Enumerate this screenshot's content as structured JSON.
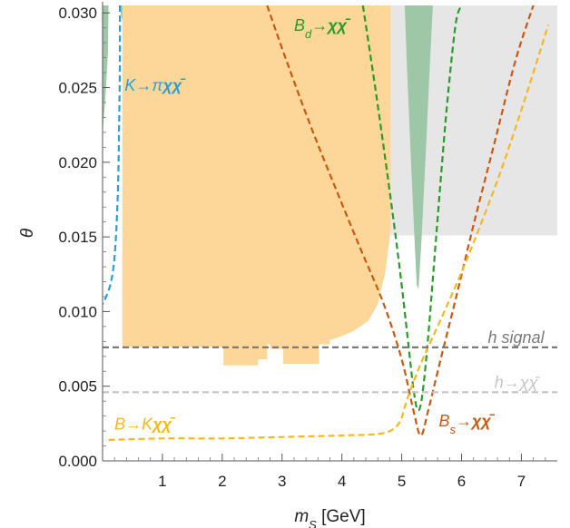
{
  "chart_data": {
    "type": "line",
    "xlabel": "m",
    "xlabel_sub": "S",
    "xlabel_unit": " [GeV]",
    "ylabel": "θ",
    "xlim": [
      0,
      7.6
    ],
    "ylim": [
      0,
      0.0305
    ],
    "x_ticks": [
      1,
      2,
      3,
      4,
      5,
      6,
      7
    ],
    "x_tick_labels": [
      "1",
      "2",
      "3",
      "4",
      "5",
      "6",
      "7"
    ],
    "y_ticks": [
      0.0,
      0.005,
      0.01,
      0.015,
      0.02,
      0.025,
      0.03
    ],
    "y_tick_labels": [
      "0.000",
      "0.005",
      "0.010",
      "0.015",
      "0.020",
      "0.025",
      "0.030"
    ],
    "grid": false,
    "colors": {
      "orange_region": "#fdd79a",
      "gray_region": "#e6e6e6",
      "green_region": "#9dc7a6",
      "cyan_line": "#2a9fd6",
      "green_line": "#2a9a2a",
      "red_line": "#c65a13",
      "yellow_line": "#f5b820",
      "h_signal_line": "#7a7a7a",
      "h_invisible_line": "#c4c4c4"
    },
    "regions": [
      {
        "id": "orange-excluded",
        "color": "#fdd79a",
        "polygon": [
          [
            0.33,
            0.0305
          ],
          [
            4.82,
            0.0305
          ],
          [
            4.82,
            0.0155
          ],
          [
            4.72,
            0.0125
          ],
          [
            4.6,
            0.0105
          ],
          [
            4.45,
            0.0094
          ],
          [
            4.2,
            0.0087
          ],
          [
            3.9,
            0.0082
          ],
          [
            3.8,
            0.0081
          ],
          [
            3.8,
            0.0078
          ],
          [
            3.62,
            0.0078
          ],
          [
            3.62,
            0.0072
          ],
          [
            3.62,
            0.0073
          ],
          [
            3.62,
            0.0065
          ],
          [
            3.02,
            0.0065
          ],
          [
            3.02,
            0.0075
          ],
          [
            2.8,
            0.0075
          ],
          [
            2.8,
            0.0078
          ],
          [
            2.75,
            0.0078
          ],
          [
            2.75,
            0.0068
          ],
          [
            2.6,
            0.0068
          ],
          [
            2.6,
            0.0064
          ],
          [
            2.02,
            0.0064
          ],
          [
            2.02,
            0.0076
          ],
          [
            0.33,
            0.0076
          ]
        ]
      },
      {
        "id": "gray-excluded",
        "color": "#e6e6e6",
        "polygon": [
          [
            4.82,
            0.0305
          ],
          [
            7.6,
            0.0305
          ],
          [
            7.6,
            0.0151
          ],
          [
            4.82,
            0.0151
          ]
        ]
      },
      {
        "id": "green-left",
        "color": "#9dc7a6",
        "polygon": [
          [
            0,
            0.0305
          ],
          [
            0.1,
            0.0305
          ],
          [
            0.09,
            0.0273
          ],
          [
            0.05,
            0.0245
          ],
          [
            0,
            0.0219
          ]
        ]
      },
      {
        "id": "green-right",
        "color": "#9dc7a6",
        "polygon": [
          [
            5.05,
            0.0305
          ],
          [
            5.52,
            0.0305
          ],
          [
            5.47,
            0.0265
          ],
          [
            5.4,
            0.0205
          ],
          [
            5.33,
            0.0148
          ],
          [
            5.28,
            0.0115
          ],
          [
            5.25,
            0.0118
          ],
          [
            5.2,
            0.016
          ],
          [
            5.14,
            0.0215
          ],
          [
            5.09,
            0.0262
          ]
        ]
      },
      {
        "id": "green-cyan-wedge",
        "color": "#9dc7a6",
        "polygon": [
          [
            0.29,
            0.0305
          ],
          [
            0.33,
            0.0305
          ],
          [
            0.33,
            0.0295
          ],
          [
            0.3,
            0.03
          ]
        ]
      }
    ],
    "series": [
      {
        "id": "k-to-pi",
        "color": "#2a9fd6",
        "x": [
          0.29,
          0.29,
          0.285,
          0.275,
          0.26,
          0.23,
          0.19,
          0.13,
          0.06,
          0.0
        ],
        "y": [
          0.0305,
          0.028,
          0.025,
          0.022,
          0.0185,
          0.0155,
          0.0132,
          0.0118,
          0.011,
          0.0105
        ]
      },
      {
        "id": "bd-to-chichi",
        "color": "#2a9a2a",
        "x": [
          4.35,
          4.55,
          4.75,
          4.95,
          5.1,
          5.2,
          5.27,
          5.34,
          5.44,
          5.58,
          5.75,
          5.9,
          6.0
        ],
        "y": [
          0.0305,
          0.0252,
          0.0195,
          0.0134,
          0.0082,
          0.0047,
          0.0034,
          0.0043,
          0.0082,
          0.0152,
          0.0235,
          0.0292,
          0.0305
        ]
      },
      {
        "id": "bs-to-chichi",
        "color": "#c65a13",
        "x": [
          2.75,
          3.1,
          3.5,
          3.9,
          4.3,
          4.7,
          5.0,
          5.2,
          5.32,
          5.45,
          5.65,
          5.9,
          6.2,
          6.55,
          6.9,
          7.2
        ],
        "y": [
          0.0305,
          0.0265,
          0.0222,
          0.0182,
          0.0143,
          0.0105,
          0.0068,
          0.0033,
          0.0017,
          0.0035,
          0.0068,
          0.0108,
          0.0158,
          0.0213,
          0.0268,
          0.0305
        ]
      },
      {
        "id": "b-to-k",
        "color": "#f5b820",
        "x": [
          0.1,
          1.0,
          2.0,
          3.0,
          4.0,
          4.6,
          4.85,
          4.98,
          5.05,
          5.15,
          5.35,
          5.7,
          6.1,
          6.6,
          7.0,
          7.45
        ],
        "y": [
          0.0014,
          0.0015,
          0.0015,
          0.0016,
          0.0017,
          0.0018,
          0.0021,
          0.0027,
          0.0036,
          0.0048,
          0.0068,
          0.0099,
          0.0136,
          0.0188,
          0.0235,
          0.0292
        ]
      },
      {
        "id": "h-signal",
        "color": "#7a7a7a",
        "x": [
          0.0,
          7.6
        ],
        "y": [
          0.0076,
          0.0076
        ]
      },
      {
        "id": "h-invisible",
        "color": "#c4c4c4",
        "x": [
          0.0,
          7.6
        ],
        "y": [
          0.0046,
          0.0046
        ]
      }
    ],
    "annotations": [
      {
        "id": "k-to-pi-label",
        "color": "#2a9fd6",
        "x": 0.37,
        "y": 0.0248,
        "parts": [
          {
            "t": "K→π",
            "b": false
          },
          {
            "t": "χχ̄",
            "b": true
          }
        ]
      },
      {
        "id": "bd-label",
        "color": "#2a9a2a",
        "x": 3.2,
        "y": 0.0288,
        "parts": [
          {
            "t": "B",
            "b": false
          },
          {
            "t": "d",
            "b": false,
            "sub": true
          },
          {
            "t": "→",
            "b": false
          },
          {
            "t": "χχ̄",
            "b": true
          }
        ]
      },
      {
        "id": "h-signal-label",
        "color": "#7a7a7a",
        "x": 6.44,
        "y": 0.0079,
        "parts": [
          {
            "t": "h signal",
            "b": false
          }
        ]
      },
      {
        "id": "h-invisible-label",
        "color": "#c4c4c4",
        "x": 6.55,
        "y": 0.0049,
        "parts": [
          {
            "t": "h→",
            "b": false
          },
          {
            "t": "χχ̄",
            "b": false
          }
        ]
      },
      {
        "id": "b-to-k-label",
        "color": "#f5b820",
        "x": 0.2,
        "y": 0.0021,
        "parts": [
          {
            "t": "B→K",
            "b": false
          },
          {
            "t": "χχ̄",
            "b": true
          }
        ]
      },
      {
        "id": "bs-label",
        "color": "#c65a13",
        "x": 5.62,
        "y": 0.0023,
        "parts": [
          {
            "t": "B",
            "b": false
          },
          {
            "t": "s",
            "b": false,
            "sub": true
          },
          {
            "t": "→",
            "b": false
          },
          {
            "t": "χχ̄",
            "b": true
          }
        ]
      }
    ]
  }
}
